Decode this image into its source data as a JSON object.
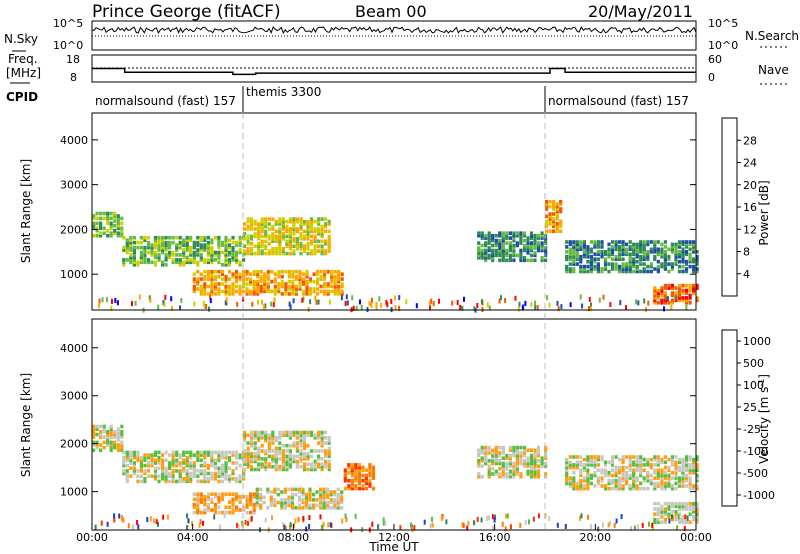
{
  "header": {
    "station": "Prince George (fitACF)",
    "beam": "Beam 00",
    "date": "20/May/2011"
  },
  "noise_panel": {
    "left_label": "N.Sky",
    "right_label": "N.Search",
    "left_ticks": [
      "10^5",
      "10^0"
    ],
    "right_ticks": [
      "10^5",
      "10^0"
    ]
  },
  "freq_panel": {
    "left_label_1": "Freq.",
    "left_label_2": "[MHz]",
    "right_label": "Nave",
    "left_ticks": [
      "18",
      "8"
    ],
    "right_ticks": [
      "60",
      "0"
    ],
    "freq_mhz": [
      {
        "t": 0.0,
        "v": 13.0
      },
      {
        "t": 1.3,
        "v": 13.0
      },
      {
        "t": 1.3,
        "v": 11.6
      },
      {
        "t": 5.6,
        "v": 11.6
      },
      {
        "t": 5.6,
        "v": 10.8
      },
      {
        "t": 6.5,
        "v": 10.8
      },
      {
        "t": 6.5,
        "v": 11.3
      },
      {
        "t": 18.2,
        "v": 11.3
      },
      {
        "t": 18.2,
        "v": 13.0
      },
      {
        "t": 18.8,
        "v": 13.0
      },
      {
        "t": 18.8,
        "v": 11.6
      },
      {
        "t": 24.0,
        "v": 11.6
      }
    ]
  },
  "cpid": {
    "label": "CPID",
    "segments": [
      {
        "text": "normalsound (fast) 157",
        "start_hr": 0.0
      },
      {
        "text": "themis 3300",
        "start_hr": 6.0
      },
      {
        "text": "normalsound (fast) 157",
        "start_hr": 18.0
      }
    ]
  },
  "chart_data": [
    {
      "type": "heatmap",
      "title": "",
      "xlabel": "",
      "ylabel": "Slant Range [km]",
      "x_range_hr": [
        0,
        24
      ],
      "ylim": [
        200,
        4600
      ],
      "yticks": [
        "4000",
        "3000",
        "2000",
        "1000"
      ],
      "colorbar": {
        "label": "Power [dB]",
        "ticks": [
          "28",
          "24",
          "20",
          "16",
          "12",
          "8",
          "4"
        ],
        "colors": [
          "#ff0000",
          "#f05a00",
          "#ffa500",
          "#d0d000",
          "#66bb44",
          "#2e8b57",
          "#1f4ea8",
          "#0000ff"
        ]
      },
      "bands": [
        {
          "t0": 0.0,
          "t1": 1.2,
          "r0": 1900,
          "r1": 2400,
          "level": 4
        },
        {
          "t0": 1.2,
          "t1": 6.0,
          "r0": 1250,
          "r1": 1900,
          "level": 4
        },
        {
          "t0": 6.0,
          "t1": 9.5,
          "r0": 1500,
          "r1": 2300,
          "level": 3
        },
        {
          "t0": 4.0,
          "t1": 10.0,
          "r0": 600,
          "r1": 1100,
          "level": 2
        },
        {
          "t0": 15.3,
          "t1": 18.0,
          "r0": 1350,
          "r1": 2000,
          "level": 5
        },
        {
          "t0": 18.0,
          "t1": 18.7,
          "r0": 2000,
          "r1": 2700,
          "level": 2
        },
        {
          "t0": 18.8,
          "t1": 24.0,
          "r0": 1100,
          "r1": 1800,
          "level": 5
        },
        {
          "t0": 22.3,
          "t1": 24.0,
          "r0": 400,
          "r1": 800,
          "level": 1
        }
      ]
    },
    {
      "type": "heatmap",
      "title": "",
      "xlabel": "Time UT",
      "ylabel": "Slant Range [km]",
      "x_range_hr": [
        0,
        24
      ],
      "ylim": [
        200,
        4600
      ],
      "yticks": [
        "4000",
        "3000",
        "2000",
        "1000"
      ],
      "xticks": [
        "00:00",
        "04:00",
        "08:00",
        "12:00",
        "16:00",
        "20:00",
        "00:00"
      ],
      "colorbar": {
        "label": "Velocity [m s^-1]",
        "ticks": [
          "1000",
          "500",
          "100",
          "25",
          "-25",
          "-100",
          "-500",
          "-1000"
        ],
        "colors": [
          "#2040c0",
          "#2f7f5f",
          "#55c040",
          "#c8c8c0",
          "#ff9f10",
          "#ff7a00",
          "#ff3000",
          "#ff0000"
        ]
      },
      "bands": [
        {
          "t0": 0.0,
          "t1": 1.2,
          "r0": 1900,
          "r1": 2400,
          "level": 3
        },
        {
          "t0": 1.2,
          "t1": 6.0,
          "r0": 1250,
          "r1": 1900,
          "level": 3
        },
        {
          "t0": 6.0,
          "t1": 9.5,
          "r0": 1500,
          "r1": 2300,
          "level": 3
        },
        {
          "t0": 4.0,
          "t1": 6.5,
          "r0": 600,
          "r1": 1000,
          "level": 4
        },
        {
          "t0": 6.5,
          "t1": 10.0,
          "r0": 700,
          "r1": 1100,
          "level": 3
        },
        {
          "t0": 10.0,
          "t1": 11.2,
          "r0": 1100,
          "r1": 1600,
          "level": 5
        },
        {
          "t0": 15.3,
          "t1": 18.0,
          "r0": 1350,
          "r1": 2000,
          "level": 3
        },
        {
          "t0": 18.8,
          "t1": 24.0,
          "r0": 1100,
          "r1": 1800,
          "level": 3
        },
        {
          "t0": 22.3,
          "t1": 24.0,
          "r0": 400,
          "r1": 800,
          "level": 3
        }
      ]
    }
  ]
}
